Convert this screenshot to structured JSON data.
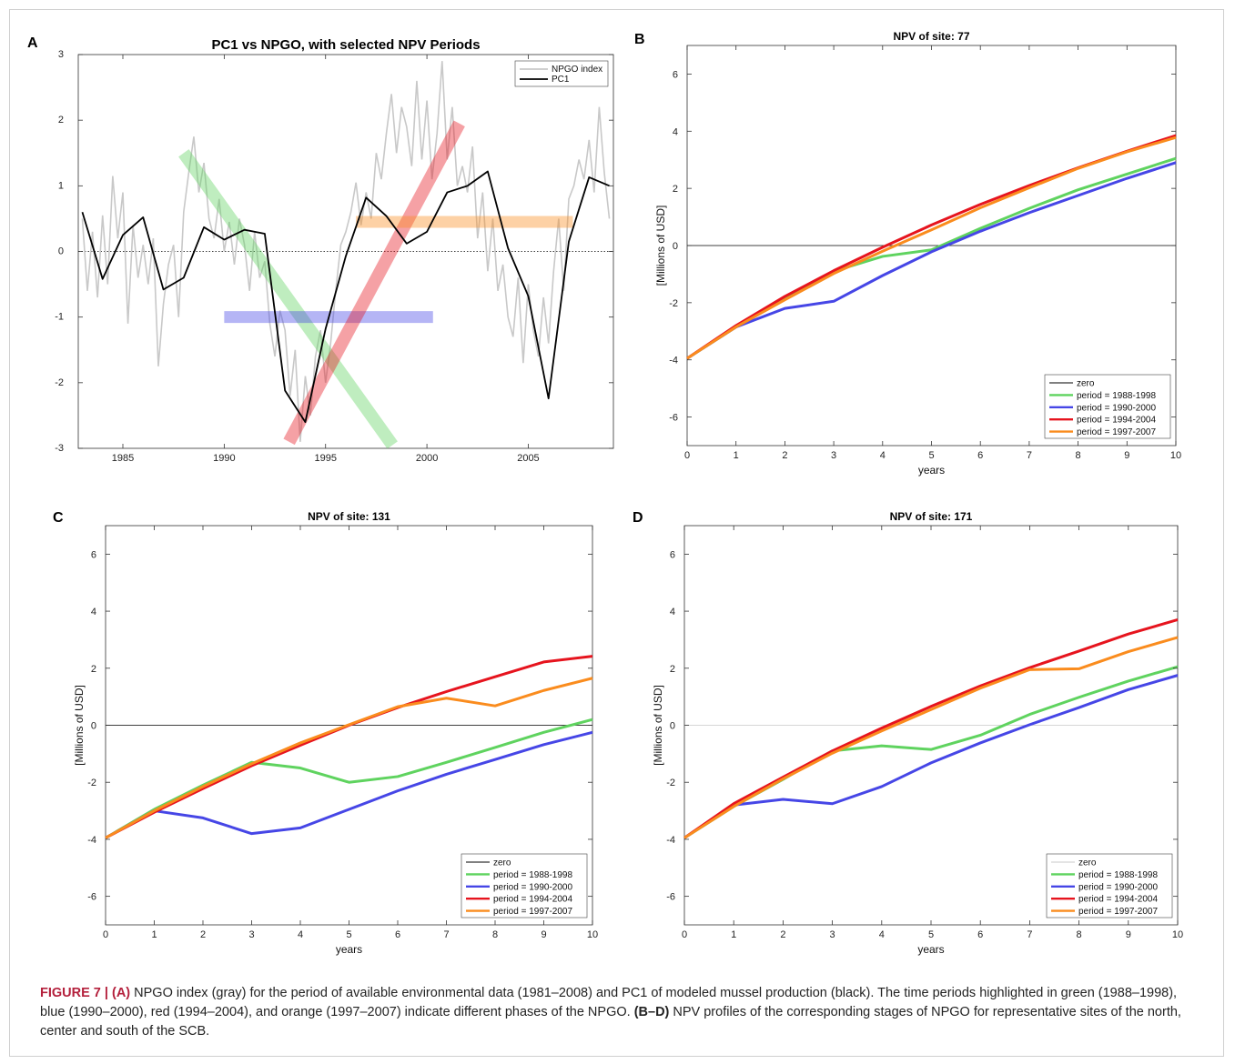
{
  "colors": {
    "green": "#5fd35f",
    "blue": "#4646e6",
    "red": "#e6141e",
    "orange": "#fa8c1e",
    "gray": "#c8c8c8",
    "black": "#000000"
  },
  "chart_data": [
    {
      "panel": "A",
      "type": "line",
      "title": "PC1 vs NPGO, with selected NPV Periods",
      "xlabel": "",
      "ylabel": "",
      "xlim": [
        1982.8,
        2009.2
      ],
      "ylim": [
        -3,
        3
      ],
      "xticks": [
        1985,
        1990,
        1995,
        2000,
        2005
      ],
      "yticks": [
        -3,
        -2,
        -1,
        0,
        1,
        2,
        3
      ],
      "grid": false,
      "legend_position": "top-right",
      "legend": [
        "NPGO index",
        "PC1"
      ],
      "series": [
        {
          "name": "PC1",
          "color": "black",
          "x": [
            1983,
            1984,
            1985,
            1986,
            1987,
            1988,
            1989,
            1990,
            1991,
            1992,
            1993,
            1994,
            1995,
            1996,
            1997,
            1998,
            1999,
            2000,
            2001,
            2002,
            2003,
            2004,
            2005,
            2006,
            2007,
            2008,
            2009
          ],
          "y": [
            0.6,
            -0.42,
            0.25,
            0.52,
            -0.58,
            -0.4,
            0.37,
            0.18,
            0.33,
            0.27,
            -2.12,
            -2.6,
            -1.18,
            -0.07,
            0.82,
            0.54,
            0.12,
            0.3,
            0.9,
            1.0,
            1.22,
            0.05,
            -0.68,
            -2.24,
            0.15,
            1.13,
            1.0
          ]
        },
        {
          "name": "NPGO index",
          "color": "gray",
          "x": [
            1983,
            1983.25,
            1983.5,
            1983.75,
            1984,
            1984.25,
            1984.5,
            1984.75,
            1985,
            1985.25,
            1985.5,
            1985.75,
            1986,
            1986.25,
            1986.5,
            1986.75,
            1987,
            1987.25,
            1987.5,
            1987.75,
            1988,
            1988.25,
            1988.5,
            1988.75,
            1989,
            1989.25,
            1989.5,
            1989.75,
            1990,
            1990.25,
            1990.5,
            1990.75,
            1991,
            1991.25,
            1991.5,
            1991.75,
            1992,
            1992.25,
            1992.5,
            1992.75,
            1993,
            1993.25,
            1993.5,
            1993.75,
            1994,
            1994.25,
            1994.5,
            1994.75,
            1995,
            1995.25,
            1995.5,
            1995.75,
            1996,
            1996.25,
            1996.5,
            1996.75,
            1997,
            1997.25,
            1997.5,
            1997.75,
            1998,
            1998.25,
            1998.5,
            1998.75,
            1999,
            1999.25,
            1999.5,
            1999.75,
            2000,
            2000.25,
            2000.5,
            2000.75,
            2001,
            2001.25,
            2001.5,
            2001.75,
            2002,
            2002.25,
            2002.5,
            2002.75,
            2003,
            2003.25,
            2003.5,
            2003.75,
            2004,
            2004.25,
            2004.5,
            2004.75,
            2005,
            2005.25,
            2005.5,
            2005.75,
            2006,
            2006.25,
            2006.5,
            2006.75,
            2007,
            2007.25,
            2007.5,
            2007.75,
            2008,
            2008.25,
            2008.5,
            2008.75,
            2009
          ],
          "y": [
            0.5,
            -0.6,
            0.3,
            -0.7,
            0.55,
            -0.5,
            1.15,
            0.2,
            0.9,
            -1.1,
            0.4,
            -0.4,
            0.1,
            -0.5,
            0.2,
            -1.75,
            -0.8,
            -0.2,
            0.1,
            -1.0,
            0.6,
            1.2,
            1.75,
            0.9,
            1.35,
            0.5,
            0.2,
            0.8,
            0.0,
            0.45,
            -0.2,
            0.5,
            0.1,
            -0.6,
            0.3,
            -0.4,
            -0.15,
            -1.1,
            -1.6,
            -0.9,
            -1.2,
            -2.2,
            -1.5,
            -2.9,
            -1.9,
            -2.5,
            -1.6,
            -1.2,
            -2.0,
            -1.4,
            -0.6,
            0.1,
            0.3,
            0.6,
            1.05,
            0.4,
            0.9,
            0.5,
            1.5,
            1.1,
            1.8,
            2.4,
            1.5,
            2.2,
            1.9,
            1.3,
            2.6,
            1.4,
            2.3,
            1.1,
            1.8,
            2.9,
            1.4,
            2.2,
            1.0,
            1.3,
            0.9,
            1.6,
            0.2,
            0.9,
            -0.3,
            0.5,
            -0.6,
            -0.2,
            -1.0,
            -1.3,
            -0.4,
            -1.7,
            -0.5,
            -1.2,
            -1.6,
            -0.7,
            -1.4,
            -0.3,
            0.5,
            -0.6,
            0.8,
            1.0,
            1.4,
            1.1,
            1.7,
            0.9,
            2.2,
            1.2,
            0.5
          ]
        }
      ],
      "highlight_bands": [
        {
          "color": "green",
          "period": "1988-1998",
          "x": [
            1988,
            1998.3
          ],
          "y": [
            1.5,
            -2.95
          ]
        },
        {
          "color": "blue",
          "period": "1990-2000",
          "x": [
            1990,
            2000.3
          ],
          "y": [
            -1.0,
            -1.0
          ]
        },
        {
          "color": "red",
          "period": "1994-2004",
          "x": [
            1993.2,
            2001.6
          ],
          "y": [
            -2.9,
            1.95
          ]
        },
        {
          "color": "orange",
          "period": "1997-2007",
          "x": [
            1996.5,
            2007.2
          ],
          "y": [
            0.45,
            0.45
          ]
        }
      ]
    },
    {
      "panel": "B",
      "type": "line",
      "title": "NPV of site: 77",
      "xlabel": "years",
      "ylabel": "[Millions of USD]",
      "xlim": [
        0,
        10
      ],
      "ylim": [
        -7,
        7
      ],
      "grid": false,
      "legend_position": "bottom-right",
      "x": [
        0,
        1,
        2,
        3,
        4,
        5,
        6,
        7,
        8,
        9,
        10
      ],
      "series": [
        {
          "name": "zero",
          "color": "black",
          "values": [
            0,
            0,
            0,
            0,
            0,
            0,
            0,
            0,
            0,
            0,
            0
          ]
        },
        {
          "name": "period = 1988-1998",
          "color": "green",
          "values": [
            -3.95,
            -2.85,
            -1.85,
            -0.9,
            -0.38,
            -0.15,
            0.6,
            1.3,
            1.95,
            2.5,
            3.05
          ]
        },
        {
          "name": "period = 1990-2000",
          "color": "blue",
          "values": [
            -3.95,
            -2.85,
            -2.2,
            -1.95,
            -1.05,
            -0.22,
            0.5,
            1.15,
            1.75,
            2.35,
            2.9
          ]
        },
        {
          "name": "period = 1994-2004",
          "color": "red",
          "values": [
            -3.95,
            -2.8,
            -1.78,
            -0.88,
            -0.06,
            0.72,
            1.44,
            2.1,
            2.72,
            3.3,
            3.85
          ]
        },
        {
          "name": "period = 1997-2007",
          "color": "orange",
          "values": [
            -3.95,
            -2.85,
            -1.9,
            -0.98,
            -0.2,
            0.55,
            1.32,
            2.02,
            2.7,
            3.28,
            3.78
          ]
        }
      ]
    },
    {
      "panel": "C",
      "type": "line",
      "title": "NPV of site: 131",
      "xlabel": "years",
      "ylabel": "[Millions of USD]",
      "xlim": [
        0,
        10
      ],
      "ylim": [
        -7,
        7
      ],
      "grid": false,
      "legend_position": "bottom-right",
      "x": [
        0,
        1,
        2,
        3,
        4,
        5,
        6,
        7,
        8,
        9,
        10
      ],
      "series": [
        {
          "name": "zero",
          "color": "black",
          "values": [
            0,
            0,
            0,
            0,
            0,
            0,
            0,
            0,
            0,
            0,
            0
          ]
        },
        {
          "name": "period = 1988-1998",
          "color": "green",
          "values": [
            -3.95,
            -2.95,
            -2.1,
            -1.3,
            -1.5,
            -2.0,
            -1.8,
            -1.3,
            -0.78,
            -0.25,
            0.2
          ]
        },
        {
          "name": "period = 1990-2000",
          "color": "blue",
          "values": [
            -3.95,
            -3.0,
            -3.25,
            -3.8,
            -3.6,
            -2.95,
            -2.3,
            -1.72,
            -1.2,
            -0.68,
            -0.25
          ]
        },
        {
          "name": "period = 1994-2004",
          "color": "red",
          "values": [
            -3.95,
            -3.05,
            -2.22,
            -1.42,
            -0.7,
            0.0,
            0.62,
            1.18,
            1.7,
            2.22,
            2.42
          ]
        },
        {
          "name": "period = 1997-2007",
          "color": "orange",
          "values": [
            -3.95,
            -3.0,
            -2.15,
            -1.35,
            -0.62,
            0.02,
            0.65,
            0.95,
            0.68,
            1.22,
            1.65
          ]
        }
      ]
    },
    {
      "panel": "D",
      "type": "line",
      "title": "NPV of site: 171",
      "xlabel": "years",
      "ylabel": "[Millions of USD]",
      "xlim": [
        0,
        10
      ],
      "ylim": [
        -7,
        7
      ],
      "grid": false,
      "legend_position": "bottom-right",
      "x": [
        0,
        1,
        2,
        3,
        4,
        5,
        6,
        7,
        8,
        9,
        10
      ],
      "series": [
        {
          "name": "zero",
          "color": "gray",
          "values": [
            0,
            0,
            0,
            0,
            0,
            0,
            0,
            0,
            0,
            0,
            0
          ]
        },
        {
          "name": "period = 1988-1998",
          "color": "green",
          "values": [
            -3.95,
            -2.85,
            -1.9,
            -0.9,
            -0.72,
            -0.85,
            -0.35,
            0.38,
            0.98,
            1.55,
            2.05
          ]
        },
        {
          "name": "period = 1990-2000",
          "color": "blue",
          "values": [
            -3.95,
            -2.8,
            -2.6,
            -2.75,
            -2.15,
            -1.32,
            -0.62,
            0.02,
            0.62,
            1.25,
            1.75
          ]
        },
        {
          "name": "period = 1994-2004",
          "color": "red",
          "values": [
            -3.95,
            -2.75,
            -1.82,
            -0.9,
            -0.1,
            0.66,
            1.38,
            2.02,
            2.6,
            3.2,
            3.7
          ]
        },
        {
          "name": "period = 1997-2007",
          "color": "orange",
          "values": [
            -3.95,
            -2.85,
            -1.88,
            -0.98,
            -0.2,
            0.55,
            1.3,
            1.95,
            1.98,
            2.58,
            3.08
          ]
        }
      ]
    }
  ],
  "caption": {
    "label": "FIGURE 7 | (A)",
    "text1": " NPGO index (gray) for the period of available environmental data (1981–2008) and PC1 of modeled mussel production (black). The time periods highlighted in green (1988–1998), blue (1990–2000), red (1994–2004), and orange (1997–2007) indicate different phases of the NPGO. ",
    "label2": "(B–D)",
    "text2": " NPV profiles of the corresponding stages of NPGO for representative sites of the north, center and south of the SCB."
  }
}
